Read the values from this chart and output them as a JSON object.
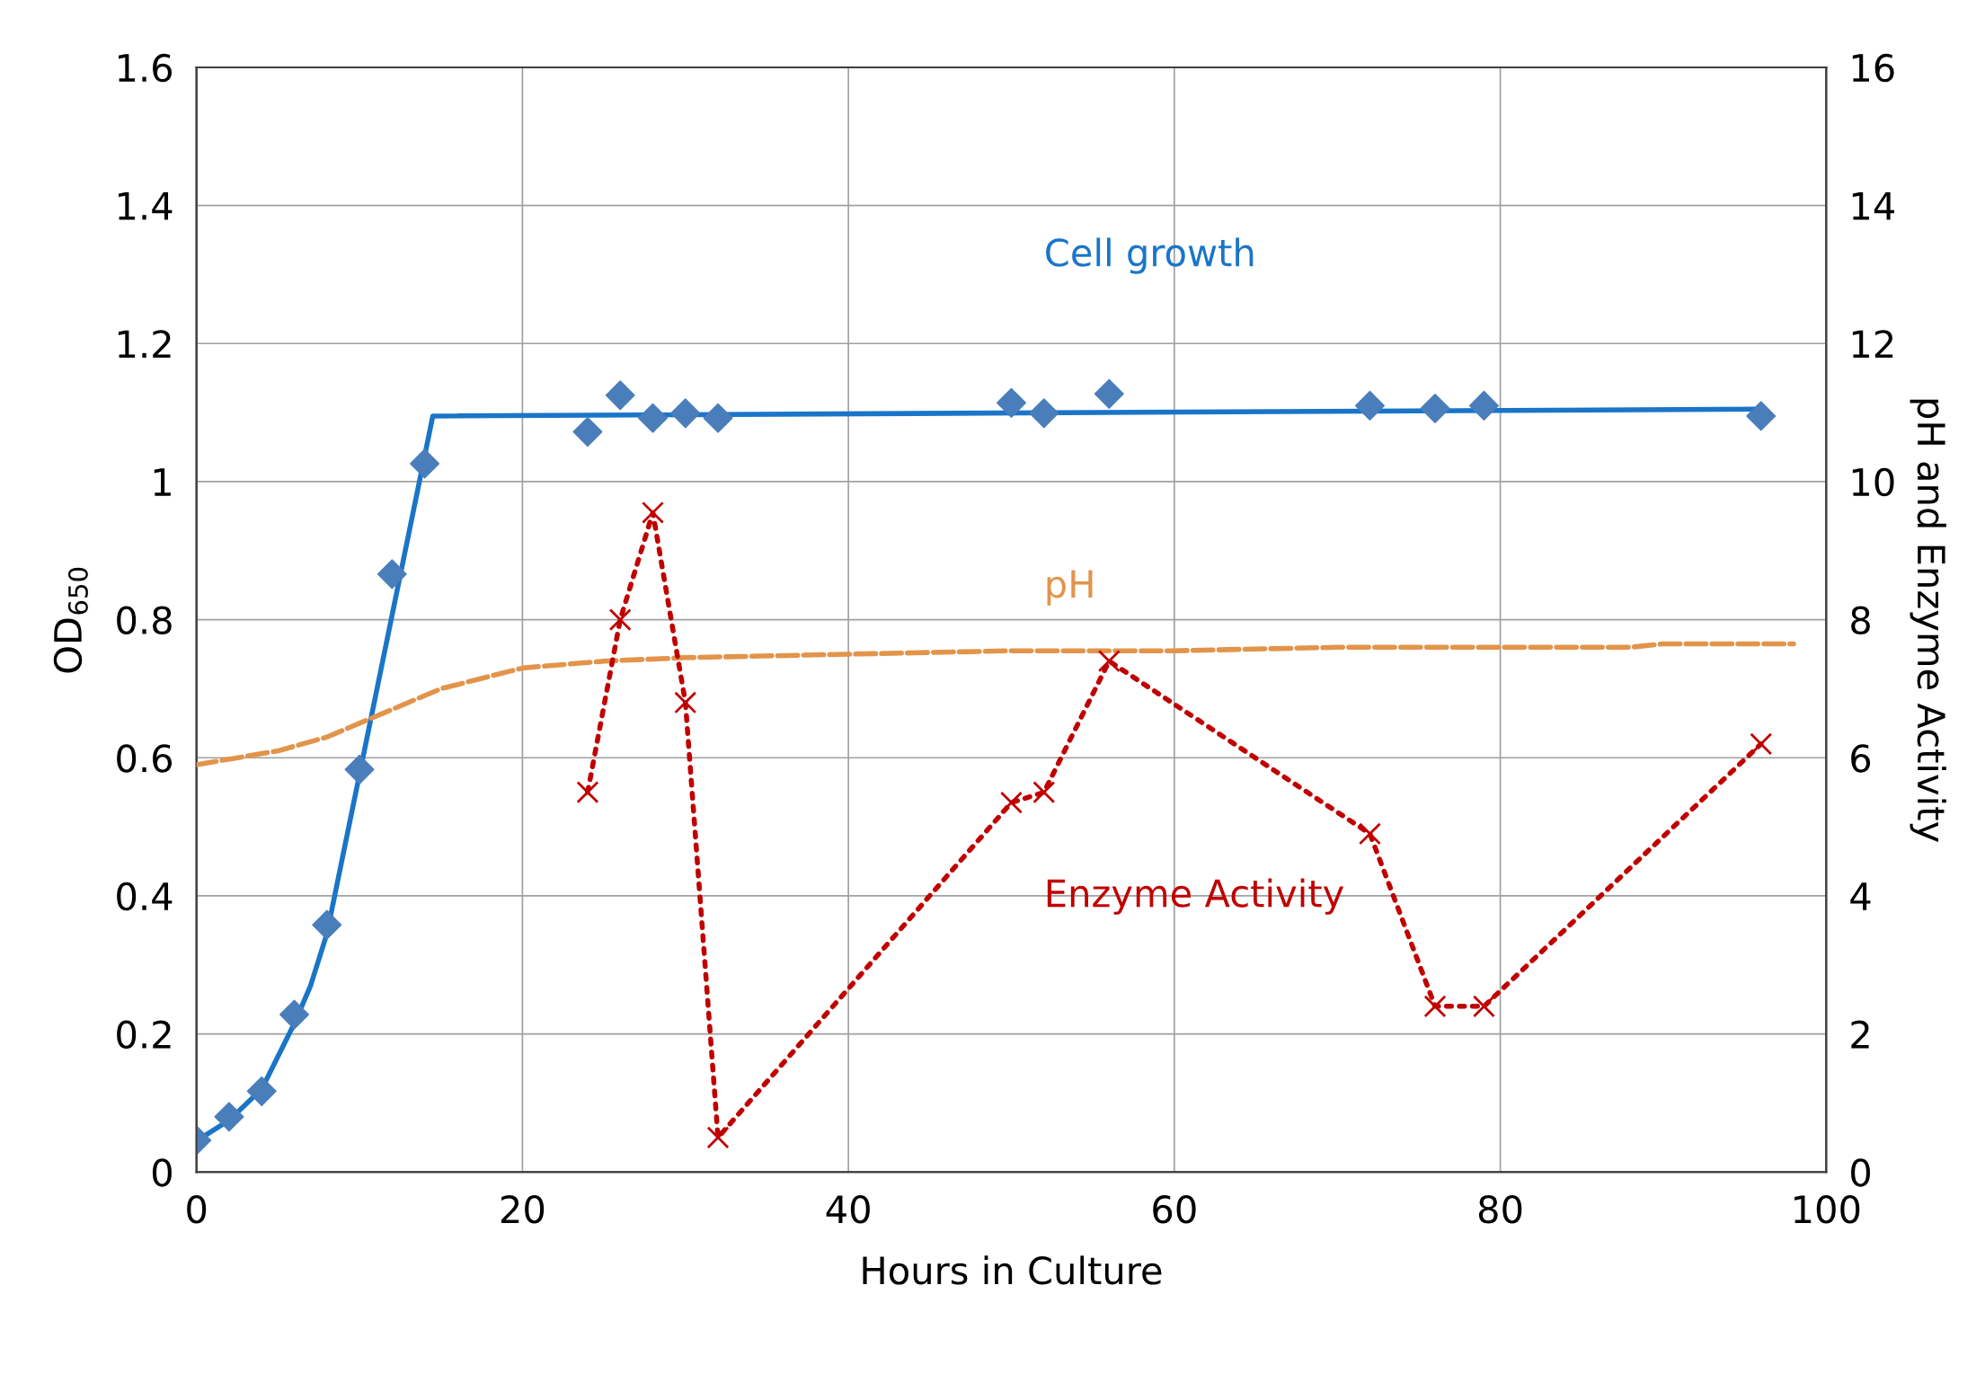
{
  "chart_data": {
    "type": "scatter",
    "xlabel": "Hours in Culture",
    "ylabel": "OD$_{650}$",
    "y2label": "pH and Enzyme Activity",
    "xlim": [
      0,
      100
    ],
    "xticks": [
      0,
      20,
      40,
      60,
      80,
      100
    ],
    "ylim": [
      0,
      1.6
    ],
    "yticks": [
      0,
      0.2,
      0.4,
      0.6,
      0.8,
      1,
      1.2,
      1.4,
      1.6
    ],
    "y2lim": [
      0,
      16
    ],
    "y2ticks": [
      0,
      2,
      4,
      6,
      8,
      10,
      12,
      14,
      16
    ],
    "grid": true,
    "legend": false,
    "series": [
      {
        "color": "#4a7ebb",
        "marker": "diamond",
        "x": [
          0,
          2,
          4,
          6,
          8,
          10,
          12,
          14,
          24,
          26,
          28,
          30,
          32,
          50,
          52,
          56,
          72,
          76,
          79,
          96
        ],
        "values": [
          0.046,
          0.08,
          0.117,
          0.228,
          0.358,
          0.583,
          0.866,
          1.026,
          1.072,
          1.125,
          1.092,
          1.099,
          1.092,
          1.114,
          1.099,
          1.127,
          1.11,
          1.106,
          1.11,
          1.095
        ]
      },
      {
        "type": "line",
        "name": "Cell growth",
        "color": "#1a75c8",
        "line_style": "solid",
        "marker": "none",
        "x": [
          0,
          2,
          4,
          6,
          7,
          8,
          14.5,
          96
        ],
        "values": [
          0.045,
          0.075,
          0.12,
          0.215,
          0.27,
          0.345,
          1.095,
          1.105
        ]
      },
      {
        "type": "line",
        "name": "pH",
        "axis": "y2",
        "color": "#e2944a",
        "line_style": "dashed",
        "marker": "none",
        "x": [
          0,
          5,
          8,
          12,
          15,
          20,
          25,
          30,
          40,
          50,
          60,
          70,
          88,
          90,
          98
        ],
        "values": [
          5.9,
          6.1,
          6.3,
          6.7,
          7.0,
          7.3,
          7.4,
          7.45,
          7.5,
          7.55,
          7.55,
          7.6,
          7.6,
          7.65,
          7.65
        ]
      },
      {
        "type": "line",
        "name": "Enzyme Activity",
        "axis": "y2",
        "color": "#c00000",
        "line_style": "dotted",
        "marker": "cross",
        "x": [
          24,
          26,
          28,
          30,
          32,
          50,
          52,
          56,
          72,
          76,
          79,
          96
        ],
        "values": [
          5.5,
          8.0,
          9.55,
          6.8,
          0.5,
          5.35,
          5.5,
          7.4,
          4.9,
          2.4,
          2.4,
          6.2
        ]
      }
    ]
  }
}
